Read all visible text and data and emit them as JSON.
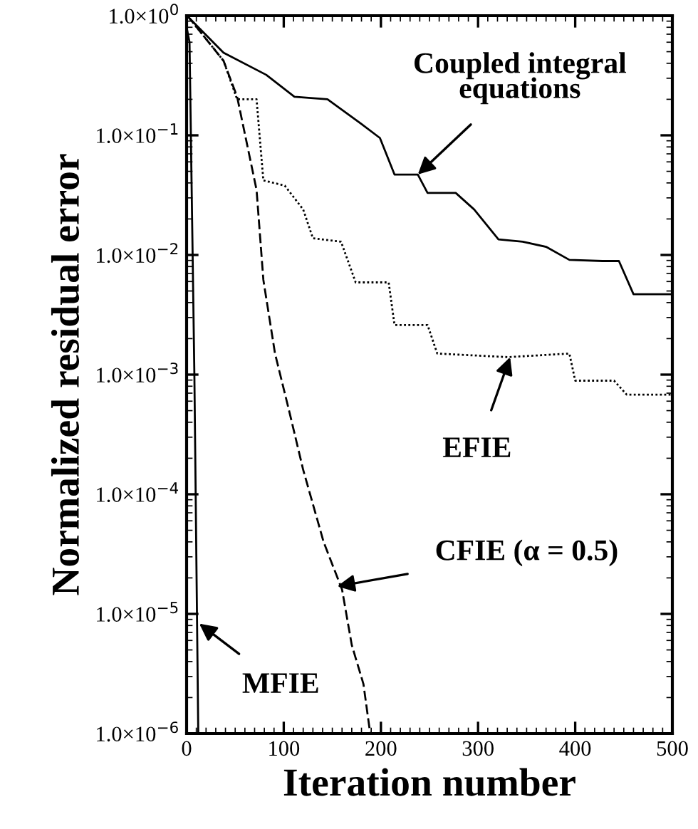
{
  "chart_data": {
    "type": "line",
    "xlabel": "Iteration number",
    "ylabel": "Normalized residual error",
    "log": "y",
    "xlim": [
      0,
      500
    ],
    "xticks": [
      0,
      100,
      200,
      300,
      400,
      500
    ],
    "ylim": [
      1e-06,
      1
    ],
    "yticks": [
      {
        "value": 1e-06,
        "label": "1.0×10$^{−6}$"
      },
      {
        "value": 1e-05,
        "label": "1.0×10$^{−5}$"
      },
      {
        "value": 0.0001,
        "label": "1.0×10$^{−4}$"
      },
      {
        "value": 0.001,
        "label": "1.0×10$^{−3}$"
      },
      {
        "value": 0.01,
        "label": "1.0×10$^{−2}$"
      },
      {
        "value": 0.1,
        "label": "1.0×10$^{−1}$"
      },
      {
        "value": 1,
        "label": "1.0×10$^{0}$"
      }
    ],
    "grid": false,
    "legend": false,
    "marker": "none",
    "series": [
      {
        "color": "#000000",
        "line_style": "solid",
        "x": [
          0,
          3,
          38,
          82,
          111,
          145,
          179,
          199,
          214,
          238,
          248,
          277,
          296,
          321,
          346,
          370,
          394,
          428,
          445,
          460,
          500
        ],
        "values": [
          1,
          0.95,
          0.49,
          0.32,
          0.21,
          0.2,
          0.126,
          0.095,
          0.047,
          0.047,
          0.033,
          0.033,
          0.024,
          0.0135,
          0.0129,
          0.0117,
          0.0091,
          0.0089,
          0.0089,
          0.0047,
          0.0047
        ]
      },
      {
        "color": "#000000",
        "line_style": "dotted",
        "x": [
          0,
          3,
          38,
          52,
          72,
          79,
          101,
          120,
          130,
          159,
          174,
          208,
          214,
          248,
          258,
          331,
          394,
          400,
          440,
          453,
          500
        ],
        "values": [
          1,
          0.95,
          0.42,
          0.2,
          0.2,
          0.042,
          0.038,
          0.024,
          0.0138,
          0.0129,
          0.0059,
          0.0059,
          0.0026,
          0.0026,
          0.0015,
          0.0014,
          0.0015,
          0.00089,
          0.00089,
          0.00068,
          0.00068
        ]
      },
      {
        "color": "#000000",
        "line_style": "dashed",
        "x": [
          0,
          3,
          38,
          52,
          72,
          79,
          91,
          106,
          120,
          141,
          160,
          170,
          182,
          189
        ],
        "values": [
          1,
          0.95,
          0.42,
          0.21,
          0.035,
          0.0062,
          0.0015,
          0.00048,
          0.00016,
          4e-05,
          1.6e-05,
          5.5e-06,
          2.6e-06,
          1e-06
        ]
      },
      {
        "color": "#000000",
        "line_style": "solid",
        "x": [
          0,
          3,
          8,
          12
        ],
        "values": [
          0.8,
          0.6,
          0.001,
          1e-06
        ]
      }
    ],
    "annotations": [
      {
        "text": "Coupled integral\nequations",
        "x": 238,
        "y": 0.047
      },
      {
        "text": "EFIE",
        "x": 333,
        "y": 0.0014
      },
      {
        "text": "CFIE (α = 0.5)",
        "x": 155,
        "y": 1.7e-05
      },
      {
        "text": "MFIE",
        "x": 13,
        "y": 8.3e-06
      }
    ]
  }
}
